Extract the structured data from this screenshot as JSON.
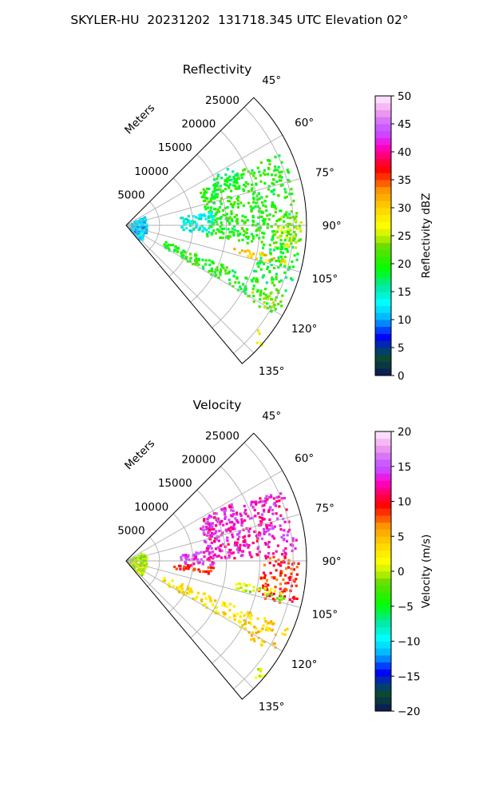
{
  "figure_title": "SKYLER-HU  20231202  131718.345 UTC Elevation 02°",
  "chart_data": [
    {
      "type": "polar-sector",
      "title": "Reflectivity",
      "radial_label": "Meters",
      "radial_ticks": [
        5000,
        10000,
        15000,
        20000,
        25000
      ],
      "radial_tick_labels": [
        "5000",
        "10000",
        "15000",
        "20000",
        "25000"
      ],
      "rmax": 27000,
      "angle_range_deg": [
        45,
        140
      ],
      "angle_ticks": [
        45,
        60,
        75,
        90,
        105,
        120,
        135
      ],
      "angle_tick_labels": [
        "45°",
        "60°",
        "75°",
        "90°",
        "105°",
        "120°",
        "135°"
      ],
      "grid": true,
      "colorbar": {
        "label": "Reflectivity dBZ",
        "min": 0,
        "max": 50,
        "ticks": [
          0,
          5,
          10,
          15,
          20,
          25,
          30,
          35,
          40,
          45,
          50
        ],
        "tick_labels": [
          "0",
          "5",
          "10",
          "15",
          "20",
          "25",
          "30",
          "35",
          "40",
          "45",
          "50"
        ],
        "stops": [
          [
            0,
            "#0b1658"
          ],
          [
            0.06,
            "#0b4a2e"
          ],
          [
            0.1,
            "#003a8c"
          ],
          [
            0.14,
            "#0000ff"
          ],
          [
            0.2,
            "#00aaff"
          ],
          [
            0.26,
            "#00ffff"
          ],
          [
            0.32,
            "#00e8a0"
          ],
          [
            0.38,
            "#00ff00"
          ],
          [
            0.46,
            "#66dd00"
          ],
          [
            0.5,
            "#ccf000"
          ],
          [
            0.54,
            "#ffff00"
          ],
          [
            0.6,
            "#ffd000"
          ],
          [
            0.66,
            "#ff9900"
          ],
          [
            0.7,
            "#ff4400"
          ],
          [
            0.74,
            "#ff0000"
          ],
          [
            0.78,
            "#ff0066"
          ],
          [
            0.82,
            "#ff00cc"
          ],
          [
            0.86,
            "#cc44ff"
          ],
          [
            0.9,
            "#cc66ff"
          ],
          [
            0.94,
            "#ee99ee"
          ],
          [
            1,
            "#ffeeff"
          ]
        ]
      },
      "echo_bands": [
        {
          "r": [
            12000,
            25500
          ],
          "theta": [
            64,
            98
          ],
          "value": 20
        },
        {
          "r": [
            22000,
            26000
          ],
          "theta": [
            86,
            98
          ],
          "value": 24
        },
        {
          "r": [
            20000,
            26000
          ],
          "theta": [
            98,
            112
          ],
          "value": 19
        },
        {
          "r": [
            8000,
            13000
          ],
          "theta": [
            80,
            95
          ],
          "value": 14
        },
        {
          "r": [
            500,
            3000
          ],
          "theta": [
            60,
            135
          ],
          "value": 12
        },
        {
          "r": [
            6000,
            21000
          ],
          "theta": [
            112,
            120
          ],
          "value": 20
        },
        {
          "r": [
            21000,
            26000
          ],
          "theta": [
            112,
            122
          ],
          "value": 22
        },
        {
          "r": [
            25000,
            27000
          ],
          "theta": [
            128,
            132
          ],
          "value": 28
        },
        {
          "r": [
            16000,
            24500
          ],
          "theta": [
            101,
            104
          ],
          "value": 30
        },
        {
          "r": [
            14000,
            18000
          ],
          "theta": [
            60,
            68
          ],
          "value": 18
        }
      ]
    },
    {
      "type": "polar-sector",
      "title": "Velocity",
      "radial_label": "Meters",
      "radial_ticks": [
        5000,
        10000,
        15000,
        20000,
        25000
      ],
      "radial_tick_labels": [
        "5000",
        "10000",
        "15000",
        "20000",
        "25000"
      ],
      "rmax": 27000,
      "angle_range_deg": [
        45,
        140
      ],
      "angle_ticks": [
        45,
        60,
        75,
        90,
        105,
        120,
        135
      ],
      "angle_tick_labels": [
        "45°",
        "60°",
        "75°",
        "90°",
        "105°",
        "120°",
        "135°"
      ],
      "grid": true,
      "colorbar": {
        "label": "Velocity (m/s)",
        "min": -20,
        "max": 20,
        "ticks": [
          -20,
          -15,
          -10,
          -5,
          0,
          5,
          10,
          15,
          20
        ],
        "tick_labels": [
          "−20",
          "−15",
          "−10",
          "−5",
          "0",
          "5",
          "10",
          "15",
          "20"
        ],
        "stops": [
          [
            0,
            "#0b1658"
          ],
          [
            0.06,
            "#0b4a2e"
          ],
          [
            0.1,
            "#003a8c"
          ],
          [
            0.14,
            "#0000ff"
          ],
          [
            0.2,
            "#00aaff"
          ],
          [
            0.26,
            "#00ffff"
          ],
          [
            0.32,
            "#00e8a0"
          ],
          [
            0.38,
            "#00ff00"
          ],
          [
            0.46,
            "#66dd00"
          ],
          [
            0.5,
            "#ccf000"
          ],
          [
            0.54,
            "#ffff00"
          ],
          [
            0.6,
            "#ffd000"
          ],
          [
            0.66,
            "#ff9900"
          ],
          [
            0.7,
            "#ff4400"
          ],
          [
            0.74,
            "#ff0000"
          ],
          [
            0.78,
            "#ff0066"
          ],
          [
            0.82,
            "#ff00cc"
          ],
          [
            0.86,
            "#cc44ff"
          ],
          [
            0.9,
            "#cc66ff"
          ],
          [
            0.94,
            "#ee99ee"
          ],
          [
            1,
            "#ffeeff"
          ]
        ]
      },
      "echo_bands": [
        {
          "r": [
            12000,
            25500
          ],
          "theta": [
            64,
            88
          ],
          "value": 13
        },
        {
          "r": [
            20000,
            26000
          ],
          "theta": [
            88,
            105
          ],
          "value": 9
        },
        {
          "r": [
            8000,
            13000
          ],
          "theta": [
            82,
            92
          ],
          "value": 14
        },
        {
          "r": [
            7000,
            13000
          ],
          "theta": [
            93,
            98
          ],
          "value": 9
        },
        {
          "r": [
            500,
            3000
          ],
          "theta": [
            60,
            135
          ],
          "value": 0
        },
        {
          "r": [
            6000,
            21000
          ],
          "theta": [
            112,
            120
          ],
          "value": 3
        },
        {
          "r": [
            21000,
            26000
          ],
          "theta": [
            112,
            122
          ],
          "value": 4
        },
        {
          "r": [
            25000,
            27000
          ],
          "theta": [
            128,
            132
          ],
          "value": 1
        },
        {
          "r": [
            16000,
            24500
          ],
          "theta": [
            100,
            104
          ],
          "value": 0
        },
        {
          "r": [
            13000,
            18000
          ],
          "theta": [
            60,
            68
          ],
          "value": 13
        }
      ]
    }
  ]
}
